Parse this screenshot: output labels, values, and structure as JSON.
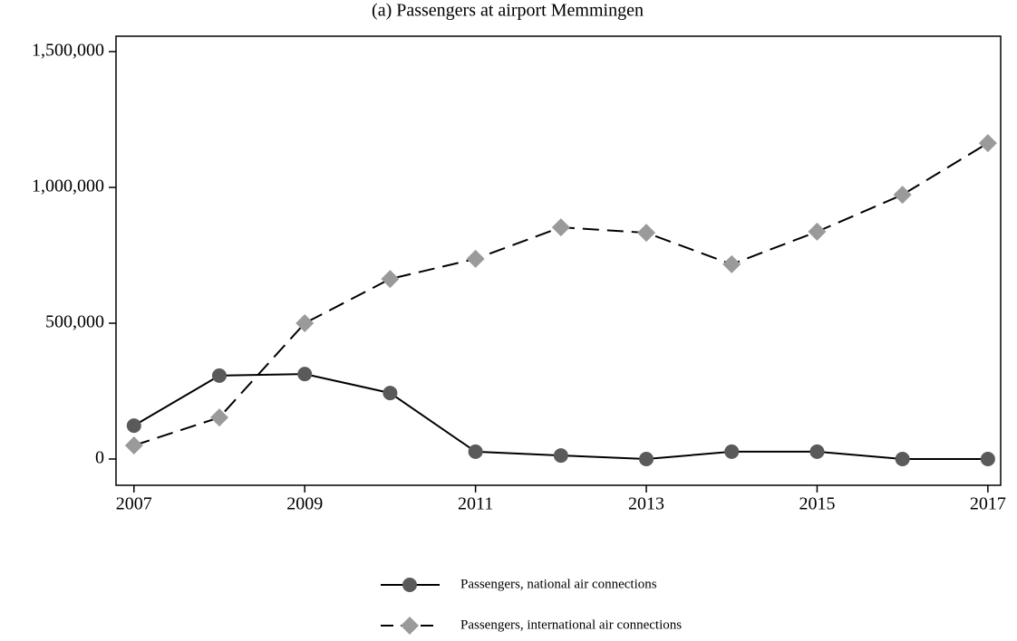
{
  "chart_data": {
    "type": "line",
    "title": "(a) Passengers at airport Memmingen",
    "x": [
      2007,
      2008,
      2009,
      2010,
      2011,
      2012,
      2013,
      2014,
      2015,
      2016,
      2017
    ],
    "series": [
      {
        "name": "Passengers, national air connections",
        "color": "#5a5a5a",
        "marker": "circle",
        "dashed": false,
        "values": [
          123000,
          307000,
          313000,
          243000,
          27000,
          13000,
          0,
          27000,
          27000,
          0,
          0
        ]
      },
      {
        "name": "Passengers, international air connections",
        "color": "#9a9a9a",
        "marker": "diamond",
        "dashed": true,
        "values": [
          50000,
          153000,
          500000,
          663000,
          737000,
          853000,
          833000,
          717000,
          837000,
          973000,
          1163000
        ]
      }
    ],
    "xlim": [
      2006.79,
      2017.15
    ],
    "xticks": [
      2007,
      2009,
      2011,
      2013,
      2015,
      2017
    ],
    "ylim": [
      -96667,
      1556667
    ],
    "yticks": [
      0,
      {
        "value": 500000,
        "label": "500,000"
      },
      {
        "value": 1000000,
        "label": "1,000,000"
      },
      {
        "value": 1500000,
        "label": "1,500,000"
      }
    ],
    "grid": false
  }
}
